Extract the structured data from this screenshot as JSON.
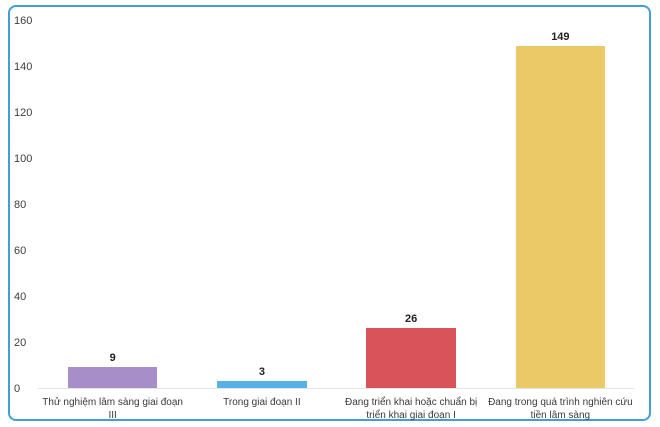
{
  "card": {
    "border_color": "#419fd7",
    "background": "#ffffff"
  },
  "chart_data": {
    "type": "bar",
    "title": "",
    "xlabel": "",
    "ylabel": "",
    "categories": [
      "Thử nghiệm lâm sàng giai đoạn III",
      "Trong giai đoạn II",
      "Đang triển khai hoặc chuẩn bị triển khai giai đoạn I",
      "Đang trong quá trình nghiên cứu tiền lâm sàng"
    ],
    "values": [
      9,
      3,
      26,
      149
    ],
    "value_labels": [
      "9",
      "3",
      "26",
      "149"
    ],
    "bar_colors": [
      "#a88ec9",
      "#56b2e4",
      "#d9545a",
      "#ecc967"
    ],
    "ylim": [
      0,
      160
    ],
    "yticks": [
      0,
      20,
      40,
      60,
      80,
      100,
      120,
      140,
      160
    ],
    "grid": false,
    "legend": false,
    "axis_line_color": "#e6e6e6",
    "tick_label_color": "#3d3d3d",
    "category_label_color": "#3a3a3a",
    "value_label_color": "#222222"
  }
}
